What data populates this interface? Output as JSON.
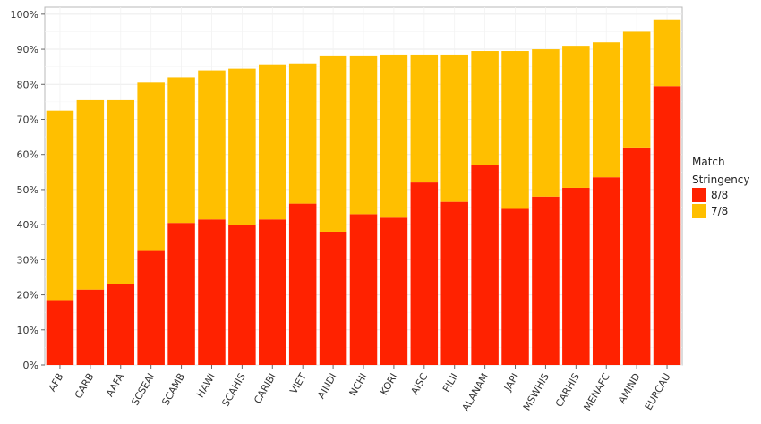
{
  "chart_data": {
    "type": "bar",
    "stacked": true,
    "categories": [
      "AFB",
      "CARB",
      "AAFA",
      "SCSEAI",
      "SCAMB",
      "HAWI",
      "SCAHIS",
      "CARIBI",
      "VIET",
      "AINDI",
      "NCHI",
      "KORI",
      "AISC",
      "FILII",
      "ALANAM",
      "JAPI",
      "MSWHIS",
      "CARHIS",
      "MENAFC",
      "AMIND",
      "EURCAU"
    ],
    "series": [
      {
        "name": "8/8",
        "color": "#ff2200",
        "values": [
          18.5,
          21.5,
          23.0,
          32.5,
          40.5,
          41.5,
          40.0,
          41.5,
          46.0,
          38.0,
          43.0,
          42.0,
          52.0,
          46.5,
          57.0,
          44.5,
          48.0,
          50.5,
          53.5,
          62.0,
          79.5
        ]
      },
      {
        "name": "7/8",
        "color": "#ffbf00",
        "values": [
          54.0,
          54.0,
          52.5,
          48.0,
          41.5,
          42.5,
          44.5,
          44.0,
          40.0,
          50.0,
          45.0,
          46.5,
          36.5,
          42.0,
          32.5,
          45.0,
          42.0,
          40.5,
          38.5,
          33.0,
          19.0
        ]
      }
    ],
    "yticks": [
      "0%",
      "10%",
      "20%",
      "30%",
      "40%",
      "50%",
      "60%",
      "70%",
      "80%",
      "90%",
      "100%"
    ],
    "ylim": [
      0,
      102
    ],
    "xlabel": "",
    "ylabel": "",
    "grid": true,
    "legend": {
      "title_line1": "Match",
      "title_line2": "Stringency",
      "placement": "right"
    }
  }
}
